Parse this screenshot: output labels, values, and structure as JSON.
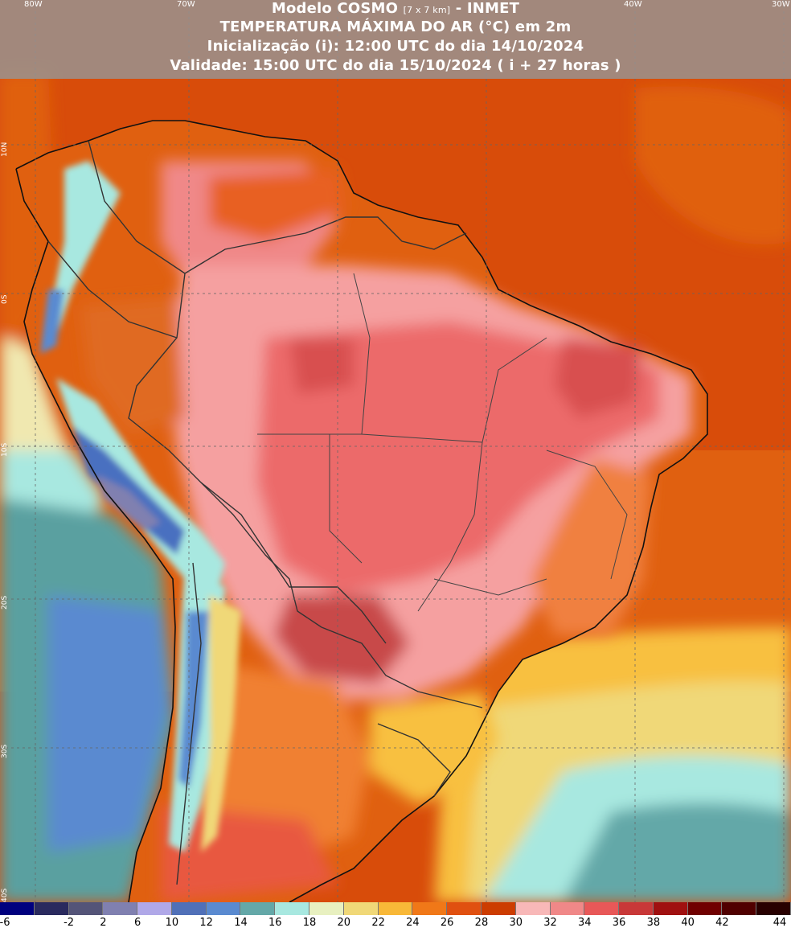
{
  "header": {
    "line1_main": "Modelo COSMO",
    "line1_res": "[7 x 7 km]",
    "line1_org": "- INMET",
    "line2": "TEMPERATURA MÁXIMA DO AR (°C) em 2m",
    "line3": "Inicialização (i): 12:00 UTC do dia 14/10/2024",
    "line4": "Validade: 15:00 UTC do dia 15/10/2024 ( i + 27 horas )"
  },
  "grid_labels": {
    "lon": [
      "80W",
      "70W",
      "40W",
      "30W"
    ],
    "lat": [
      "10N",
      "0S",
      "10S",
      "20S",
      "30S",
      "40S"
    ]
  },
  "colorbar": {
    "ticks": [
      "-6",
      "-2",
      "2",
      "6",
      "10",
      "12",
      "14",
      "16",
      "18",
      "20",
      "22",
      "24",
      "26",
      "28",
      "30",
      "32",
      "34",
      "36",
      "38",
      "40",
      "42",
      "44"
    ],
    "colors": [
      "#00007f",
      "#2a2a5e",
      "#545478",
      "#8080b0",
      "#b0a8e8",
      "#5070b8",
      "#5a8ad0",
      "#64a8a8",
      "#a8e8e0",
      "#e8f0c0",
      "#f0d878",
      "#f8b838",
      "#f07818",
      "#e05010",
      "#cc3c00",
      "#f8b8b8",
      "#f08888",
      "#e85858",
      "#c83838",
      "#a01010",
      "#700000",
      "#500000",
      "#280000"
    ]
  },
  "map_colors": {
    "ocean_north": "#d84c0a",
    "ocean_central": "#e06010",
    "ocean_south_warm": "#f8c040",
    "ocean_south_cool": "#a8e8e0",
    "pacific": "#5aa0a0",
    "land_hot": "#f09898",
    "land_very_hot": "#e86060",
    "land_extreme": "#c84040",
    "andes_cold": "#4a70c0",
    "border": "#333333"
  }
}
